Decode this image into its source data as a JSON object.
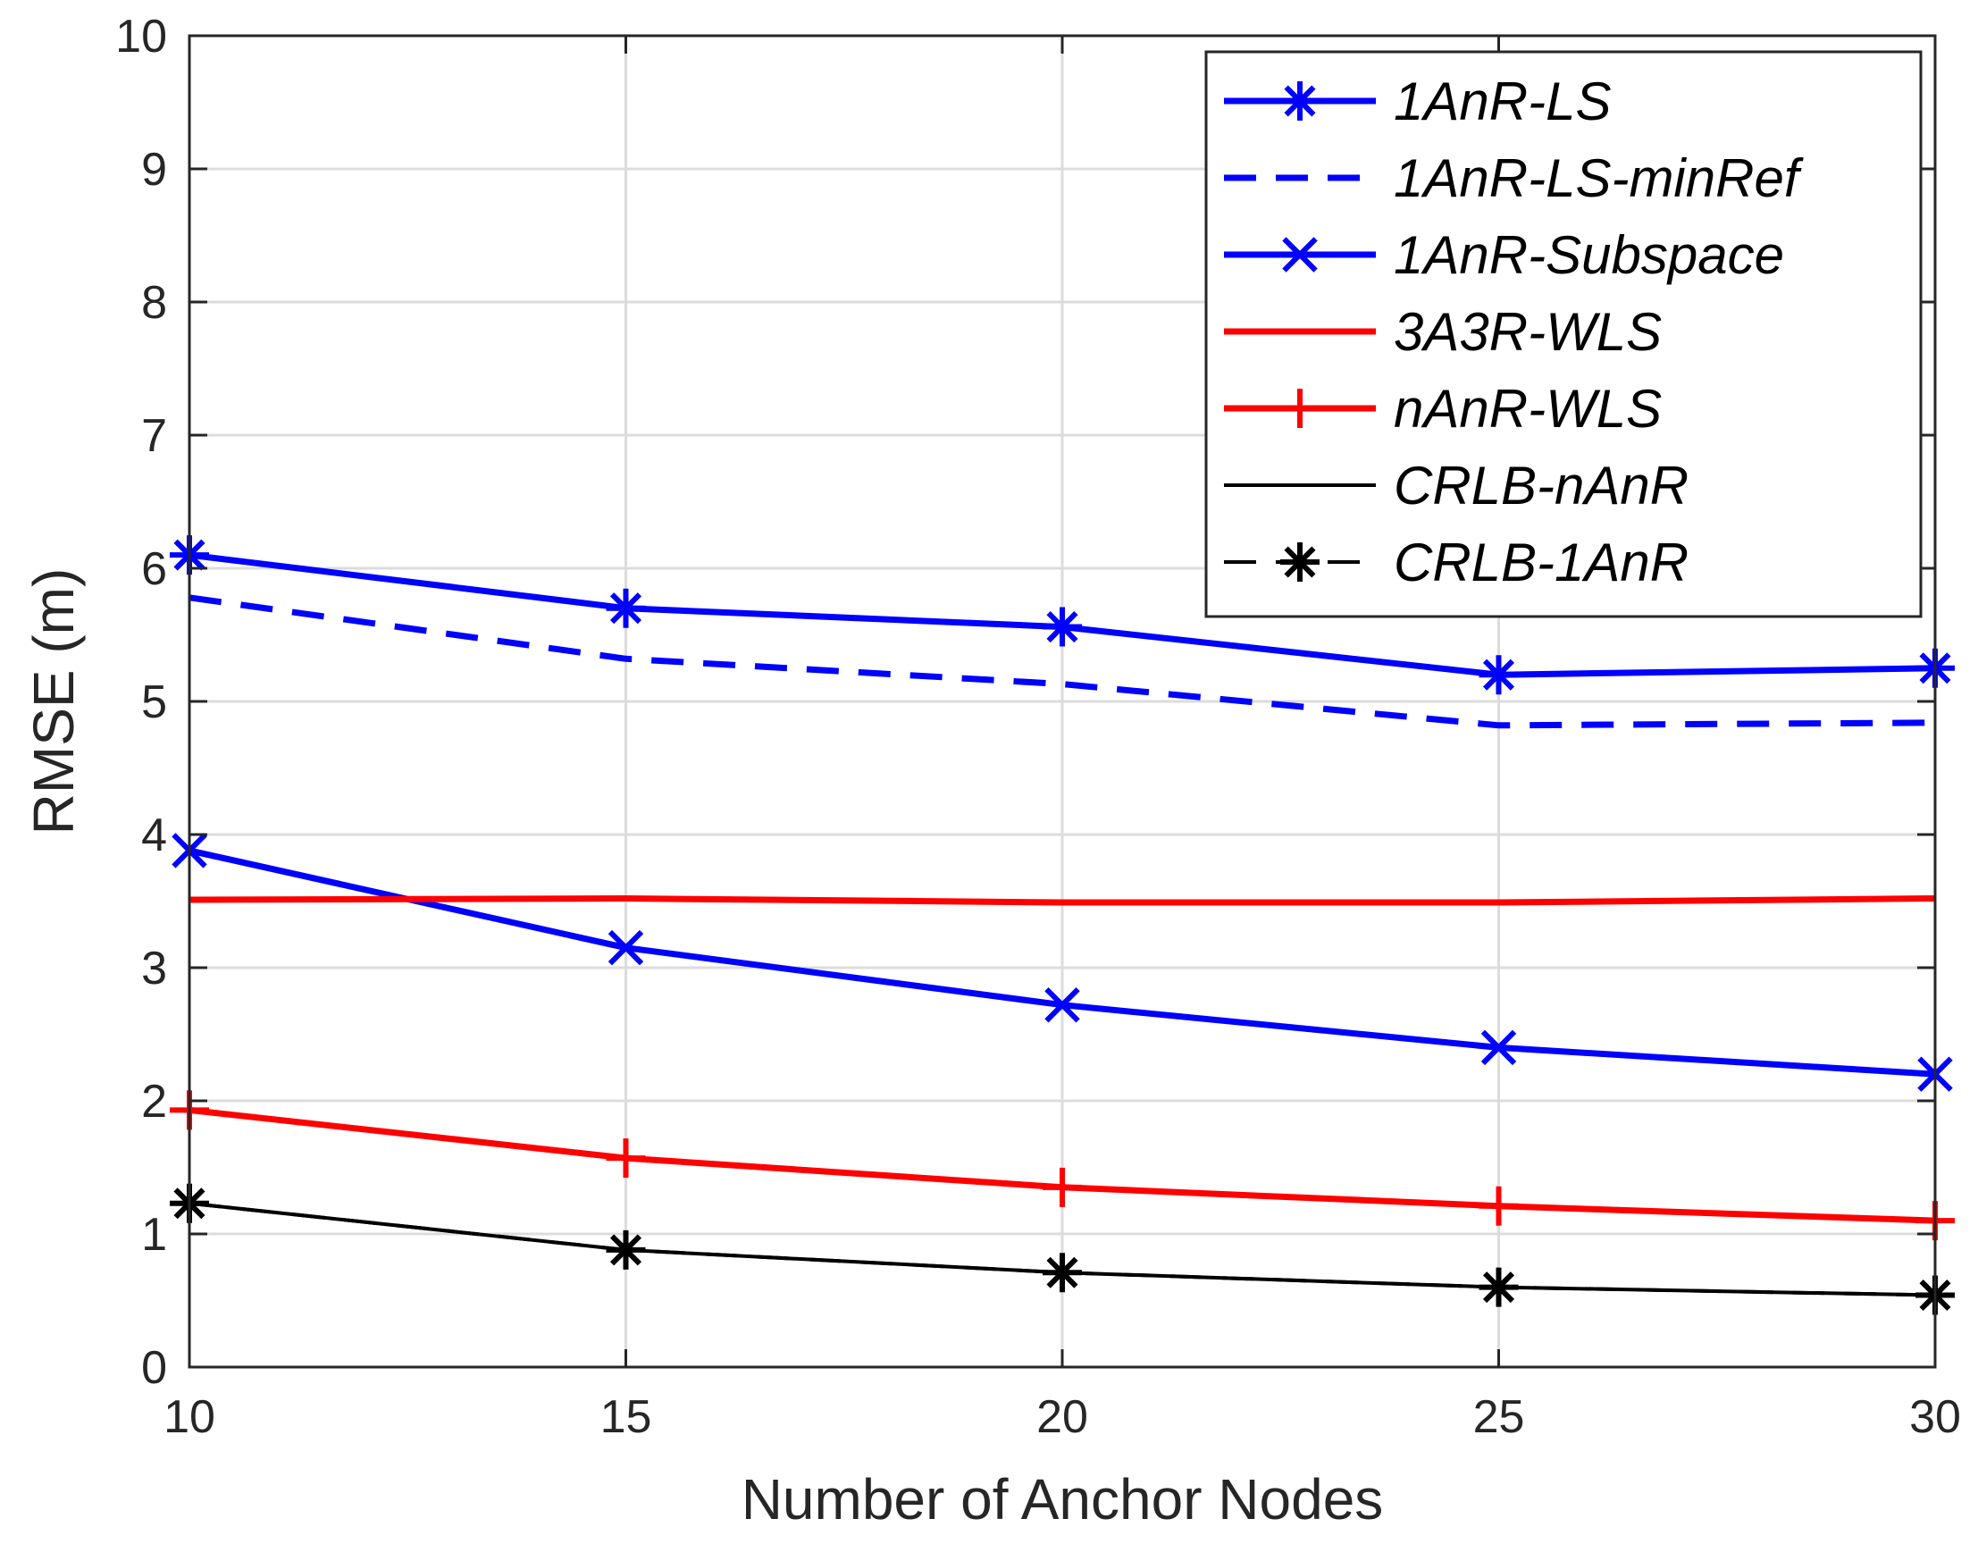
{
  "chart_data": {
    "type": "line",
    "title": "",
    "xlabel": "Number of Anchor Nodes",
    "ylabel": "RMSE (m)",
    "xlim": [
      10,
      30
    ],
    "ylim": [
      0,
      10
    ],
    "xticks": [
      10,
      15,
      20,
      25,
      30
    ],
    "yticks": [
      0,
      1,
      2,
      3,
      4,
      5,
      6,
      7,
      8,
      9,
      10
    ],
    "x": [
      10,
      15,
      20,
      25,
      30
    ],
    "grid": true,
    "legend_position": "top-right",
    "series": [
      {
        "name": "1AnR-LS",
        "color": "#0000ff",
        "dash": "solid",
        "marker": "asterisk",
        "values": [
          6.1,
          5.7,
          5.56,
          5.2,
          5.25
        ]
      },
      {
        "name": "1AnR-LS-minRef",
        "color": "#0000ff",
        "dash": "dashed",
        "marker": "none",
        "values": [
          5.78,
          5.32,
          5.13,
          4.82,
          4.84
        ]
      },
      {
        "name": "1AnR-Subspace",
        "color": "#0000ff",
        "dash": "solid",
        "marker": "x",
        "values": [
          3.88,
          3.15,
          2.72,
          2.4,
          2.2
        ]
      },
      {
        "name": "3A3R-WLS",
        "color": "#ff0000",
        "dash": "solid",
        "marker": "none",
        "values": [
          3.51,
          3.52,
          3.49,
          3.49,
          3.52
        ]
      },
      {
        "name": "nAnR-WLS",
        "color": "#ff0000",
        "dash": "solid",
        "marker": "plus",
        "values": [
          1.93,
          1.57,
          1.35,
          1.21,
          1.1
        ]
      },
      {
        "name": "CRLB-nAnR",
        "color": "#000000",
        "dash": "solid",
        "marker": "none",
        "values": [
          1.23,
          0.88,
          0.71,
          0.6,
          0.54
        ]
      },
      {
        "name": "CRLB-1AnR",
        "color": "#000000",
        "dash": "dashed",
        "marker": "asterisk",
        "values": [
          1.23,
          0.88,
          0.71,
          0.6,
          0.54
        ]
      }
    ]
  }
}
